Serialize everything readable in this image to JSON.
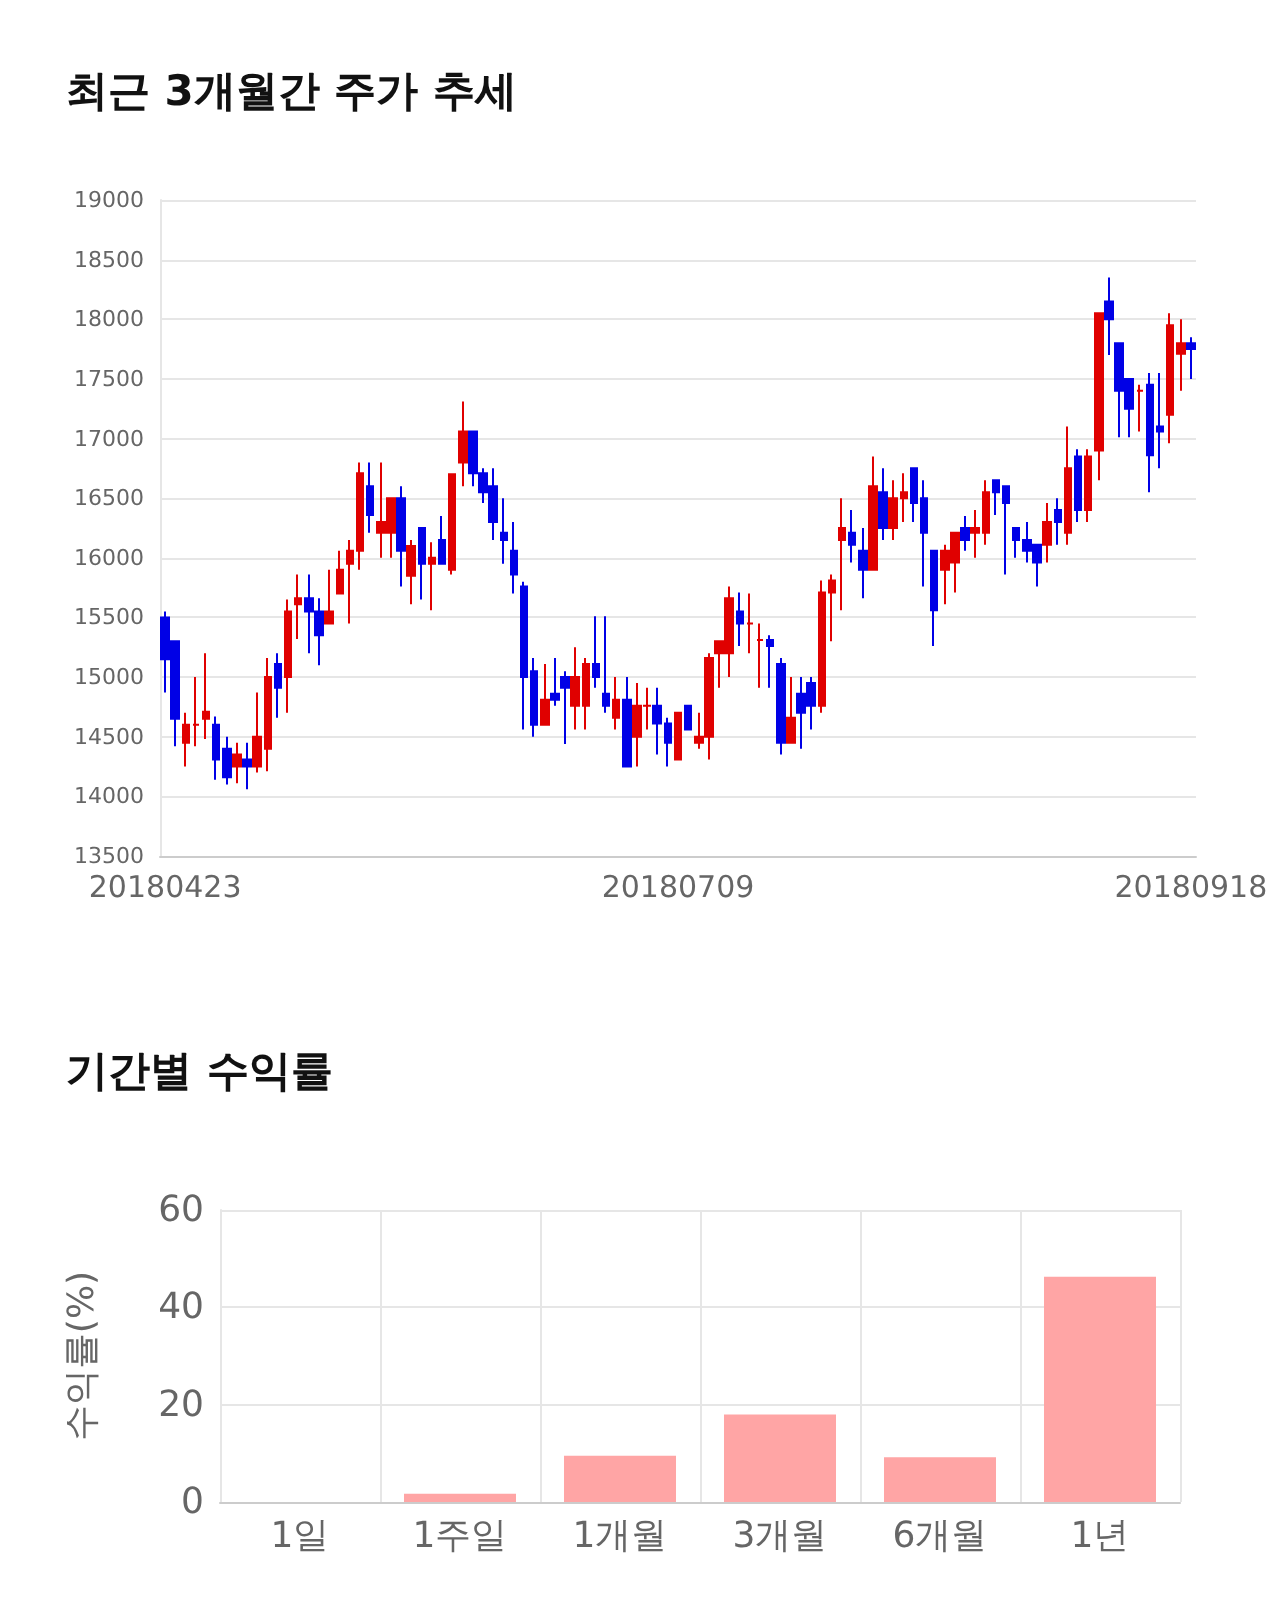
{
  "chart_data": [
    {
      "type": "candlestick",
      "title": "최근 3개월간 주가 추세",
      "categories": [
        "20180423",
        null,
        null,
        null,
        null,
        null,
        null,
        null,
        null,
        null,
        null,
        null,
        null,
        null,
        null,
        null,
        null,
        null,
        null,
        null,
        null,
        null,
        null,
        null,
        null,
        null,
        null,
        null,
        null,
        null,
        null,
        null,
        null,
        null,
        null,
        null,
        null,
        null,
        null,
        null,
        null,
        null,
        null,
        null,
        null,
        null,
        null,
        null,
        null,
        null,
        "20180709",
        null,
        null,
        null,
        null,
        null,
        null,
        null,
        null,
        null,
        null,
        null,
        null,
        null,
        null,
        null,
        null,
        null,
        null,
        null,
        null,
        null,
        null,
        null,
        null,
        null,
        null,
        null,
        null,
        null,
        null,
        null,
        null,
        null,
        null,
        null,
        null,
        null,
        null,
        null,
        null,
        null,
        null,
        null,
        null,
        null,
        null,
        null,
        null,
        null,
        "20180918"
      ],
      "ohlc": [
        [
          15500,
          15550,
          14870,
          15150
        ],
        [
          15300,
          15300,
          14420,
          14650
        ],
        [
          14450,
          14700,
          14250,
          14600
        ],
        [
          14600,
          15000,
          14420,
          14600
        ],
        [
          14650,
          15200,
          14480,
          14710
        ],
        [
          14600,
          14670,
          14140,
          14310
        ],
        [
          14400,
          14500,
          14100,
          14160
        ],
        [
          14250,
          14450,
          14110,
          14350
        ],
        [
          14310,
          14450,
          14060,
          14250
        ],
        [
          14250,
          14870,
          14200,
          14500
        ],
        [
          14400,
          15160,
          14210,
          15000
        ],
        [
          15110,
          15200,
          14660,
          14910
        ],
        [
          15000,
          15650,
          14700,
          15550
        ],
        [
          15610,
          15860,
          15320,
          15660
        ],
        [
          15660,
          15860,
          15200,
          15550
        ],
        [
          15550,
          15660,
          15100,
          15350
        ],
        [
          15450,
          15900,
          15450,
          15550
        ],
        [
          15700,
          16060,
          15700,
          15900
        ],
        [
          15950,
          16150,
          15450,
          16060
        ],
        [
          16060,
          16800,
          15900,
          16710
        ],
        [
          16600,
          16800,
          16210,
          16360
        ],
        [
          16210,
          16800,
          16000,
          16300
        ],
        [
          16210,
          16500,
          16000,
          16500
        ],
        [
          16500,
          16600,
          15760,
          16060
        ],
        [
          15850,
          16150,
          15610,
          16100
        ],
        [
          16250,
          16250,
          15650,
          15950
        ],
        [
          15950,
          16130,
          15560,
          16000
        ],
        [
          16150,
          16350,
          15950,
          15950
        ],
        [
          15900,
          16700,
          15860,
          16700
        ],
        [
          16800,
          17310,
          16600,
          17060
        ],
        [
          17060,
          17060,
          16600,
          16710
        ],
        [
          16710,
          16750,
          16460,
          16550
        ],
        [
          16600,
          16750,
          16150,
          16300
        ],
        [
          16210,
          16500,
          15950,
          16150
        ],
        [
          16060,
          16300,
          15700,
          15860
        ],
        [
          15760,
          15800,
          14560,
          15000
        ],
        [
          15050,
          15160,
          14500,
          14600
        ],
        [
          14600,
          15110,
          14600,
          14810
        ],
        [
          14860,
          15160,
          14760,
          14810
        ],
        [
          15000,
          15050,
          14440,
          14910
        ],
        [
          14760,
          15250,
          14560,
          15000
        ],
        [
          14760,
          15160,
          14560,
          15110
        ],
        [
          15110,
          15510,
          14910,
          15000
        ],
        [
          14860,
          15510,
          14700,
          14760
        ],
        [
          14660,
          15000,
          14560,
          14810
        ],
        [
          14810,
          15000,
          14250,
          14250
        ],
        [
          14500,
          14950,
          14250,
          14760
        ],
        [
          14760,
          14910,
          14560,
          14760
        ],
        [
          14760,
          14910,
          14350,
          14610
        ],
        [
          14610,
          14660,
          14250,
          14450
        ],
        [
          14310,
          14700,
          14310,
          14700
        ],
        [
          14760,
          14760,
          14560,
          14560
        ],
        [
          14450,
          14700,
          14400,
          14500
        ],
        [
          14500,
          15200,
          14310,
          15160
        ],
        [
          15200,
          15300,
          14910,
          15300
        ],
        [
          15200,
          15760,
          15000,
          15660
        ],
        [
          15550,
          15710,
          15260,
          15450
        ],
        [
          15450,
          15700,
          15200,
          15450
        ],
        [
          15310,
          15450,
          14910,
          15310
        ],
        [
          15310,
          15350,
          14910,
          15260
        ],
        [
          15110,
          15160,
          14350,
          14450
        ],
        [
          14450,
          15000,
          14450,
          14660
        ],
        [
          14860,
          15000,
          14400,
          14700
        ],
        [
          14950,
          15000,
          14560,
          14760
        ],
        [
          14760,
          15810,
          14700,
          15710
        ],
        [
          15710,
          15860,
          15300,
          15810
        ],
        [
          16150,
          16500,
          15560,
          16250
        ],
        [
          16210,
          16400,
          15960,
          16110
        ],
        [
          16060,
          16250,
          15660,
          15900
        ],
        [
          15900,
          16850,
          15900,
          16600
        ],
        [
          16550,
          16750,
          16150,
          16250
        ],
        [
          16250,
          16650,
          16150,
          16500
        ],
        [
          16500,
          16710,
          16300,
          16550
        ],
        [
          16750,
          16750,
          16300,
          16460
        ],
        [
          16500,
          16650,
          15760,
          16210
        ],
        [
          16060,
          16060,
          15260,
          15560
        ],
        [
          15900,
          16110,
          15610,
          16060
        ],
        [
          15960,
          16210,
          15710,
          16210
        ],
        [
          16250,
          16350,
          16060,
          16150
        ],
        [
          16210,
          16400,
          16000,
          16250
        ],
        [
          16210,
          16650,
          16110,
          16550
        ],
        [
          16650,
          16650,
          16360,
          16550
        ],
        [
          16600,
          16600,
          15860,
          16460
        ],
        [
          16250,
          16250,
          16000,
          16150
        ],
        [
          16150,
          16300,
          15960,
          16060
        ],
        [
          16110,
          16110,
          15760,
          15960
        ],
        [
          16110,
          16460,
          15960,
          16300
        ],
        [
          16400,
          16500,
          16110,
          16300
        ],
        [
          16210,
          17100,
          16110,
          16750
        ],
        [
          16850,
          16910,
          16300,
          16400
        ],
        [
          16400,
          16910,
          16300,
          16850
        ],
        [
          16900,
          18050,
          16650,
          18050
        ],
        [
          18150,
          18350,
          17700,
          18000
        ],
        [
          17800,
          17800,
          17010,
          17400
        ],
        [
          17500,
          17500,
          17010,
          17250
        ],
        [
          17400,
          17450,
          17060,
          17400
        ],
        [
          17450,
          17550,
          16550,
          16860
        ],
        [
          17100,
          17550,
          16750,
          17060
        ],
        [
          17200,
          18050,
          16960,
          17950
        ],
        [
          17710,
          18000,
          17400,
          17800
        ],
        [
          17800,
          17850,
          17500,
          17750
        ]
      ],
      "colors": [
        "#0000e6",
        "#0000e6",
        "#e00000",
        "#e00000",
        "#e00000",
        "#0000e6",
        "#0000e6",
        "#e00000",
        "#0000e6",
        "#e00000",
        "#e00000",
        "#0000e6",
        "#e00000",
        "#e00000",
        "#0000e6",
        "#0000e6",
        "#e00000",
        "#e00000",
        "#e00000",
        "#e00000",
        "#0000e6",
        "#e00000",
        "#e00000",
        "#0000e6",
        "#e00000",
        "#0000e6",
        "#e00000",
        "#0000e6",
        "#e00000",
        "#e00000",
        "#0000e6",
        "#0000e6",
        "#0000e6",
        "#0000e6",
        "#0000e6",
        "#0000e6",
        "#0000e6",
        "#e00000",
        "#0000e6",
        "#0000e6",
        "#e00000",
        "#e00000",
        "#0000e6",
        "#0000e6",
        "#e00000",
        "#0000e6",
        "#e00000",
        "#e00000",
        "#0000e6",
        "#0000e6",
        "#e00000",
        "#0000e6",
        "#e00000",
        "#e00000",
        "#e00000",
        "#e00000",
        "#0000e6",
        "#e00000",
        "#e00000",
        "#0000e6",
        "#0000e6",
        "#e00000",
        "#0000e6",
        "#0000e6",
        "#e00000",
        "#e00000",
        "#e00000",
        "#0000e6",
        "#0000e6",
        "#e00000",
        "#0000e6",
        "#e00000",
        "#e00000",
        "#0000e6",
        "#0000e6",
        "#0000e6",
        "#e00000",
        "#e00000",
        "#0000e6",
        "#e00000",
        "#e00000",
        "#0000e6",
        "#0000e6",
        "#0000e6",
        "#0000e6",
        "#0000e6",
        "#e00000",
        "#0000e6",
        "#e00000",
        "#0000e6",
        "#e00000",
        "#e00000",
        "#0000e6",
        "#0000e6",
        "#0000e6",
        "#e00000",
        "#0000e6",
        "#0000e6",
        "#e00000",
        "#e00000",
        "#0000e6"
      ],
      "ylim": [
        13500,
        19000
      ],
      "yticks": [
        13500,
        14000,
        14500,
        15000,
        15500,
        16000,
        16500,
        17000,
        17500,
        18000,
        18500,
        19000
      ],
      "grid": "y"
    },
    {
      "type": "bar",
      "title": "기간별 수익률",
      "ylabel": "수익률(%)",
      "categories": [
        "1일",
        "1주일",
        "1개월",
        "3개월",
        "6개월",
        "1년"
      ],
      "series": [
        {
          "color": "#ffa5a5",
          "values": [
            0,
            1.7,
            9.5,
            18,
            9.2,
            46.3
          ]
        }
      ],
      "ylim": [
        0,
        60
      ],
      "yticks": [
        0,
        20,
        40,
        60
      ],
      "grid": true
    }
  ]
}
